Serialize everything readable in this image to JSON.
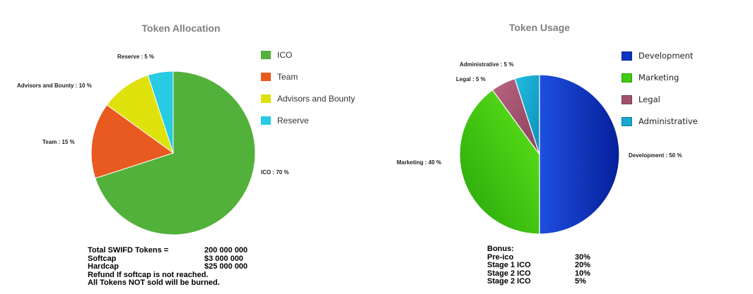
{
  "chart_data": [
    {
      "type": "pie",
      "title": "Token Allocation",
      "categories": [
        "ICO",
        "Team",
        "Advisors and Bounty",
        "Reserve"
      ],
      "values": [
        70,
        15,
        10,
        5
      ],
      "slice_labels": [
        "ICO : 70 %",
        "Team : 15 %",
        "Advisors and Bounty : 10 %",
        "Reserve : 5 %"
      ],
      "colors": [
        "#52b13a",
        "#e85a1f",
        "#dfe10d",
        "#27cbe3"
      ],
      "legend": [
        "ICO",
        "Team",
        "Advisors and Bounty",
        "Reserve"
      ],
      "legend_placement": "right"
    },
    {
      "type": "pie",
      "title": "Token Usage",
      "categories": [
        "Development",
        "Marketing",
        "Legal",
        "Administrative"
      ],
      "values": [
        50,
        40,
        5,
        5
      ],
      "slice_labels": [
        "Development : 50 %",
        "Marketing : 40 %",
        "Legal : 5 %",
        "Administrative : 5 %"
      ],
      "colors": [
        "#0c35c4",
        "#3fcc10",
        "#a3506f",
        "#17a9d0"
      ],
      "legend": [
        "Development",
        "Marketing",
        "Legal",
        "Administrative"
      ],
      "legend_placement": "right"
    }
  ],
  "token_info": [
    {
      "label": "Total SWIFD Tokens =",
      "value": "200 000 000"
    },
    {
      "label": "Softcap",
      "value": "$3 000 000"
    },
    {
      "label": "Hardcap",
      "value": "$25 000 000"
    },
    {
      "label": "Refund If softcap is not reached.",
      "value": ""
    },
    {
      "label": "All Tokens NOT sold will be burned.",
      "value": ""
    }
  ],
  "bonus": {
    "title": "Bonus:",
    "rows": [
      {
        "stage": "Pre-ico",
        "percent": "30%"
      },
      {
        "stage": "Stage 1 ICO",
        "percent": "20%"
      },
      {
        "stage": "Stage 2 ICO",
        "percent": "10%"
      },
      {
        "stage": "Stage 2 ICO",
        "percent": "5%"
      }
    ]
  }
}
